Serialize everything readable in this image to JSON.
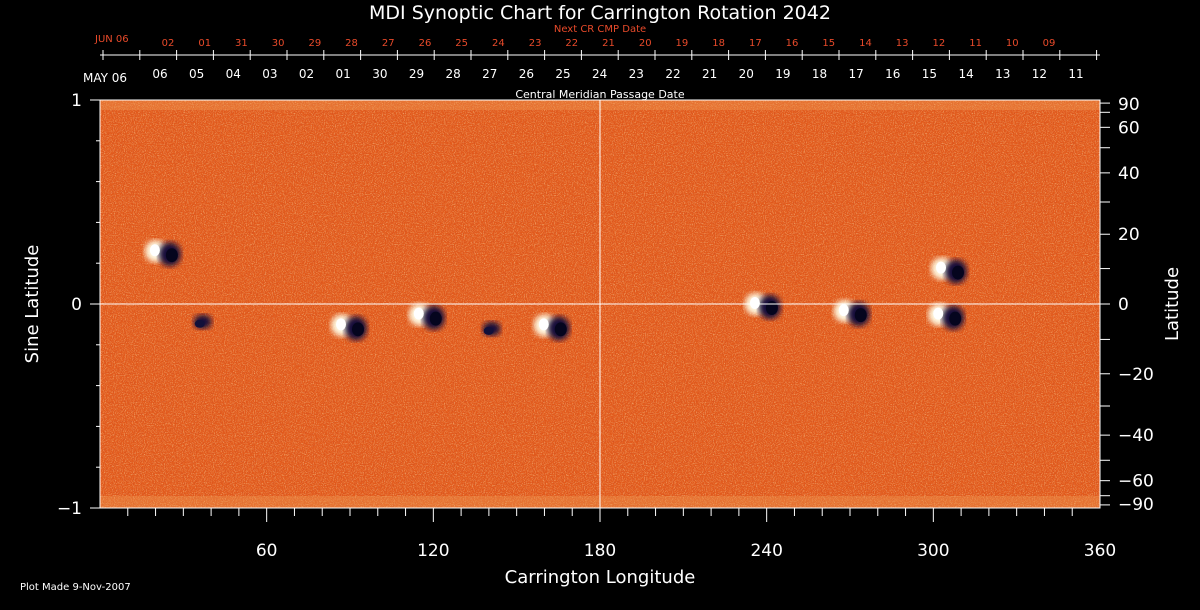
{
  "chart_data": {
    "type": "heatmap",
    "title": "MDI Synoptic Chart for Carrington Rotation 2042",
    "xlabel": "Carrington Longitude",
    "ylabel_left": "Sine Latitude",
    "ylabel_right": "Latitude",
    "xlim": [
      0,
      360
    ],
    "ylim_sine": [
      -1,
      1
    ],
    "x_ticks": [
      60,
      120,
      180,
      240,
      300,
      360
    ],
    "left_y_ticks": [
      {
        "value": 1,
        "label": "1"
      },
      {
        "value": 0,
        "label": "0"
      },
      {
        "value": -1,
        "label": "−1"
      }
    ],
    "right_lat_ticks": [
      90,
      60,
      40,
      20,
      0,
      -20,
      -40,
      -60,
      -90
    ],
    "cmp_title": "Central Meridian Passage Date",
    "cmp_month_label": "MAY 06",
    "cmp_dates": [
      "06",
      "05",
      "04",
      "03",
      "02",
      "01",
      "30",
      "29",
      "28",
      "27",
      "26",
      "25",
      "24",
      "23",
      "22",
      "21",
      "20",
      "19",
      "18",
      "17",
      "16",
      "15",
      "14",
      "13",
      "12",
      "11"
    ],
    "next_title": "Next CR CMP Date",
    "next_month_label": "JUN 06",
    "next_dates": [
      "02",
      "01",
      "31",
      "30",
      "29",
      "28",
      "27",
      "26",
      "25",
      "24",
      "23",
      "22",
      "21",
      "20",
      "19",
      "18",
      "17",
      "16",
      "15",
      "14",
      "13",
      "12",
      "11",
      "10",
      "09"
    ],
    "footer": "Plot Made  9-Nov-2007",
    "active_regions": [
      {
        "lon": 23,
        "lat": 15,
        "polarity": "mixed"
      },
      {
        "lon": 37,
        "lat": -5,
        "polarity": "negative"
      },
      {
        "lon": 90,
        "lat": -6,
        "polarity": "mixed"
      },
      {
        "lon": 118,
        "lat": -3,
        "polarity": "mixed"
      },
      {
        "lon": 141,
        "lat": -7,
        "polarity": "negative"
      },
      {
        "lon": 163,
        "lat": -6,
        "polarity": "mixed"
      },
      {
        "lon": 239,
        "lat": 0,
        "polarity": "mixed"
      },
      {
        "lon": 271,
        "lat": -2,
        "polarity": "mixed"
      },
      {
        "lon": 305,
        "lat": -3,
        "polarity": "mixed"
      },
      {
        "lon": 306,
        "lat": 10,
        "polarity": "mixed"
      }
    ],
    "colors": {
      "background": "#000000",
      "field_base": "#e25a1c",
      "positive": "#fff8e0",
      "negative": "#12103a",
      "axis": "#ffffff",
      "date_red": "#e84a2a"
    }
  }
}
